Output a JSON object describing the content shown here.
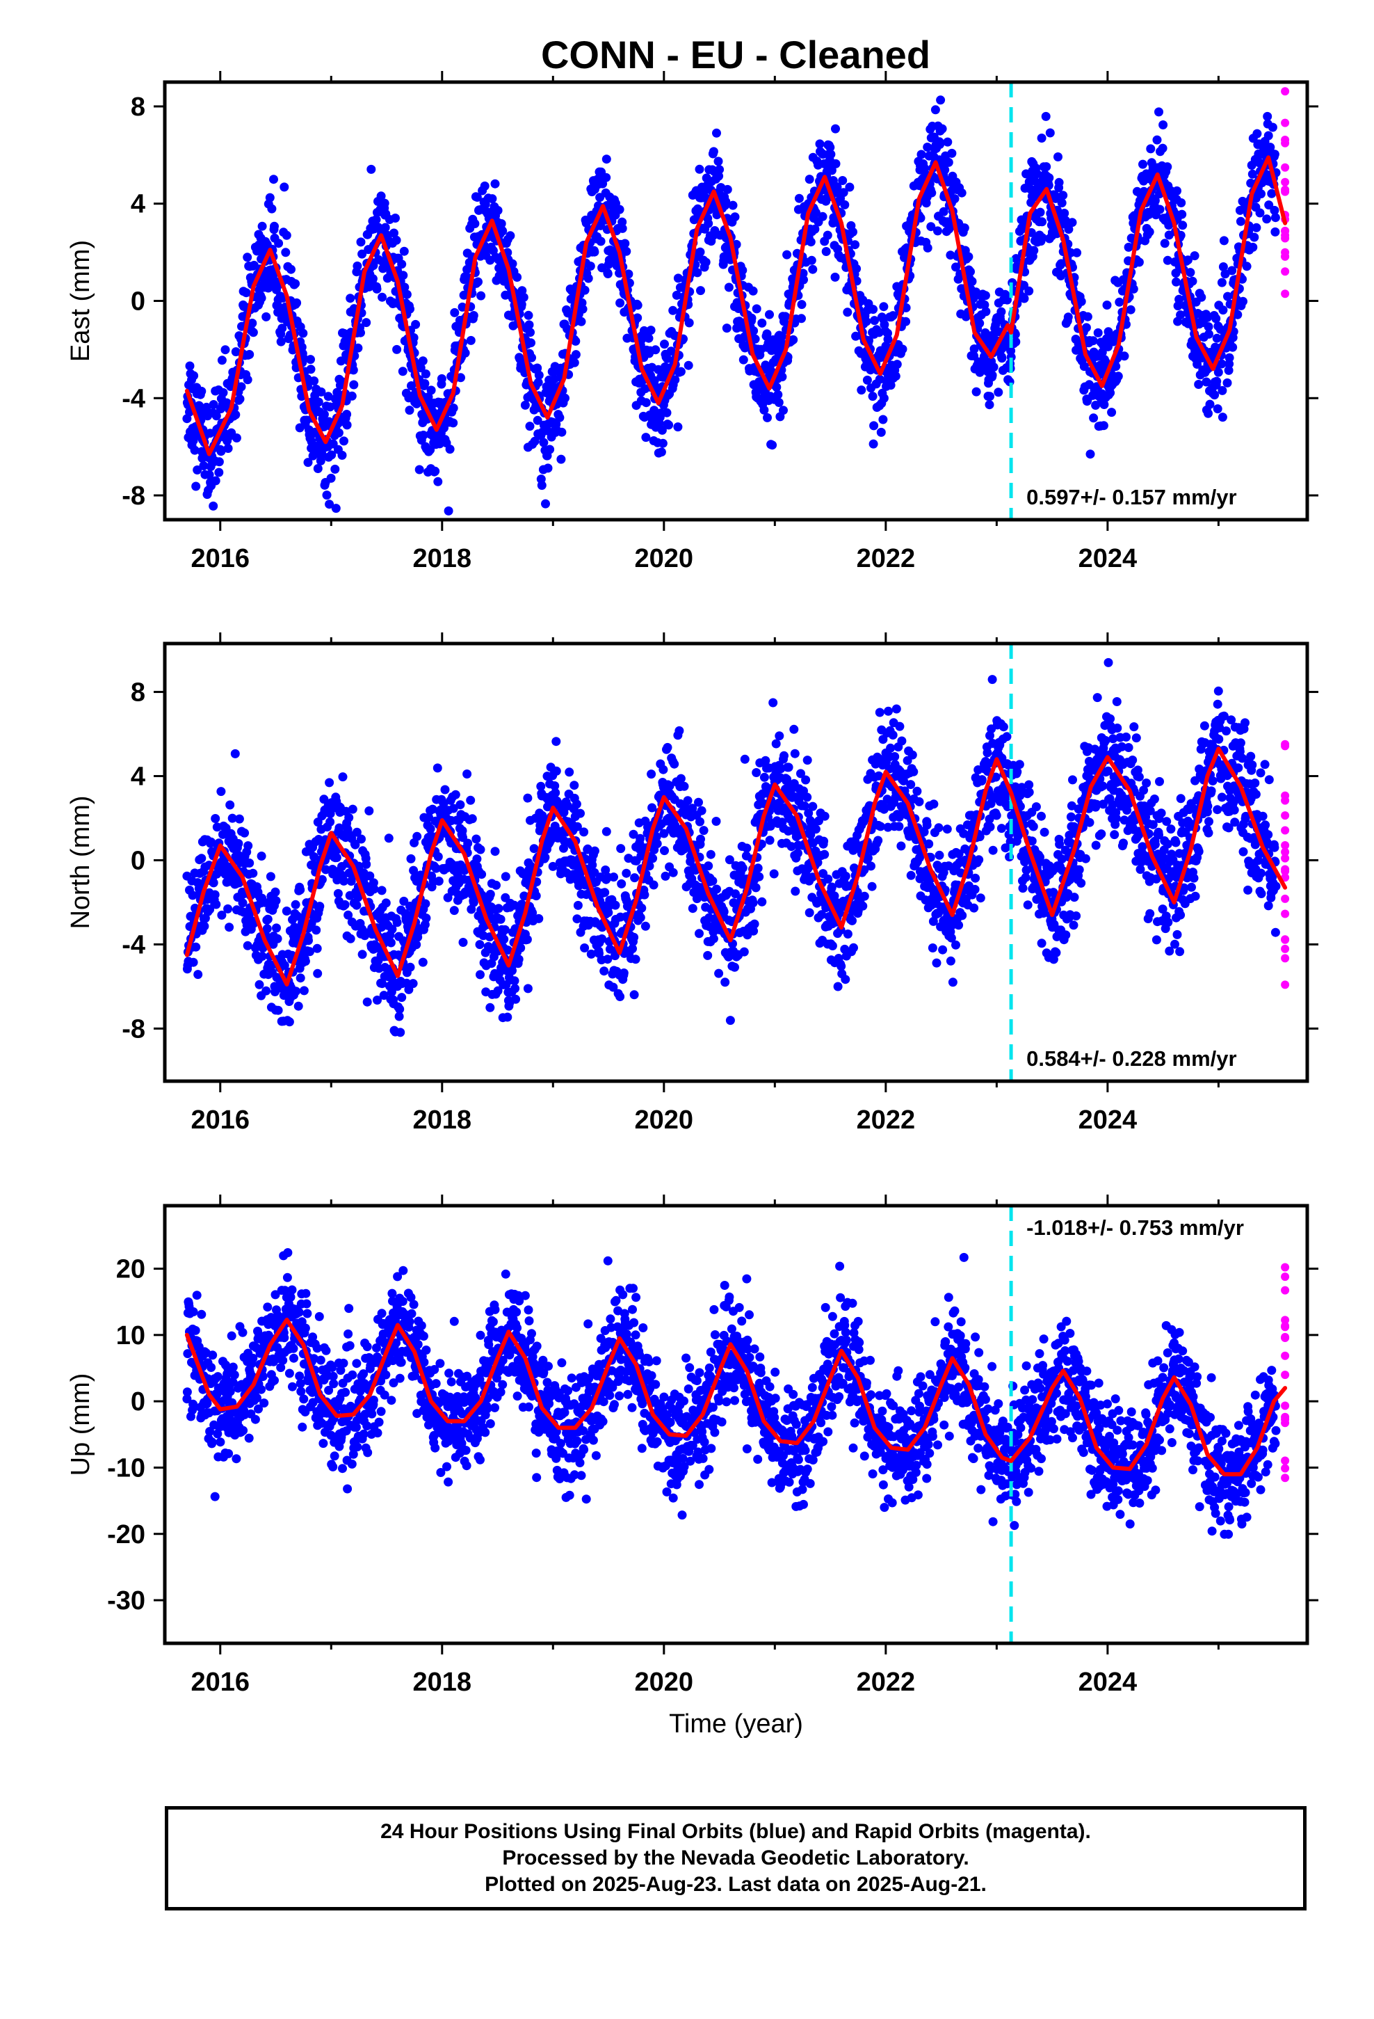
{
  "title": "CONN  - EU - Cleaned",
  "colors": {
    "final_orbits": "#0000ff",
    "rapid_orbits": "#ff00ff",
    "model_fit": "#ff0000",
    "offset_line": "#00e5ee",
    "frame": "#000000"
  },
  "footer": {
    "line1": "24 Hour Positions Using Final Orbits (blue) and Rapid Orbits (magenta).",
    "line2": "Processed by the Nevada Geodetic Laboratory.",
    "line3": "Plotted on 2025-Aug-23. Last data on 2025-Aug-21."
  },
  "chart_data": [
    {
      "type": "scatter",
      "panel": "east",
      "ylabel": "East (mm)",
      "xlabel": "",
      "xlim": [
        2015.5,
        2025.8
      ],
      "ylim": [
        -9,
        9
      ],
      "xticks": [
        2016,
        2018,
        2020,
        2022,
        2024
      ],
      "yticks": [
        -8,
        -4,
        0,
        4,
        8
      ],
      "rate_label": "0.597+/- 0.157 mm/yr",
      "rate_position": "bottom-right",
      "offset_epoch": 2023.13,
      "fit_curve": {
        "x": [
          2015.7,
          2015.9,
          2016.1,
          2016.3,
          2016.45,
          2016.6,
          2016.8,
          2016.95,
          2017.1,
          2017.3,
          2017.45,
          2017.6,
          2017.8,
          2017.95,
          2018.1,
          2018.3,
          2018.45,
          2018.6,
          2018.8,
          2018.95,
          2019.1,
          2019.3,
          2019.45,
          2019.6,
          2019.8,
          2019.95,
          2020.1,
          2020.3,
          2020.45,
          2020.6,
          2020.8,
          2020.95,
          2021.1,
          2021.3,
          2021.45,
          2021.6,
          2021.8,
          2021.95,
          2022.1,
          2022.3,
          2022.45,
          2022.6,
          2022.8,
          2022.95,
          2023.1,
          2023.13,
          2023.3,
          2023.45,
          2023.6,
          2023.8,
          2023.95,
          2024.1,
          2024.3,
          2024.45,
          2024.6,
          2024.8,
          2024.95,
          2025.1,
          2025.3,
          2025.45,
          2025.6
        ],
        "y": [
          -3.7,
          -6.3,
          -4.4,
          0.6,
          2.1,
          0.2,
          -4.5,
          -5.8,
          -4.3,
          1.2,
          2.7,
          0.8,
          -3.9,
          -5.3,
          -3.8,
          1.8,
          3.3,
          1.3,
          -3.4,
          -4.8,
          -3.2,
          2.4,
          3.9,
          2.0,
          -2.8,
          -4.2,
          -2.6,
          3.0,
          4.5,
          2.6,
          -2.2,
          -3.6,
          -2.0,
          3.6,
          5.1,
          3.2,
          -1.6,
          -3.0,
          -1.4,
          4.2,
          5.7,
          3.7,
          -1.3,
          -2.3,
          -1.0,
          -1.3,
          3.6,
          4.6,
          2.5,
          -2.2,
          -3.5,
          -1.8,
          3.7,
          5.2,
          3.2,
          -1.5,
          -2.8,
          -1.2,
          4.4,
          5.9,
          3.2
        ]
      }
    },
    {
      "type": "scatter",
      "panel": "north",
      "ylabel": "North (mm)",
      "xlabel": "",
      "xlim": [
        2015.5,
        2025.8
      ],
      "ylim": [
        -10.5,
        10.3
      ],
      "xticks": [
        2016,
        2018,
        2020,
        2022,
        2024
      ],
      "yticks": [
        -8,
        -4,
        0,
        4,
        8
      ],
      "rate_label": "0.584+/- 0.228 mm/yr",
      "rate_position": "bottom-right",
      "offset_epoch": 2023.13,
      "fit_curve": {
        "x": [
          2015.7,
          2015.85,
          2016.0,
          2016.2,
          2016.4,
          2016.6,
          2016.75,
          2016.9,
          2017.0,
          2017.2,
          2017.4,
          2017.6,
          2017.75,
          2017.9,
          2018.0,
          2018.2,
          2018.4,
          2018.6,
          2018.75,
          2018.9,
          2019.0,
          2019.2,
          2019.4,
          2019.6,
          2019.75,
          2019.9,
          2020.0,
          2020.2,
          2020.4,
          2020.6,
          2020.75,
          2020.9,
          2021.0,
          2021.2,
          2021.4,
          2021.6,
          2021.75,
          2021.9,
          2022.0,
          2022.2,
          2022.4,
          2022.6,
          2022.75,
          2022.9,
          2023.0,
          2023.13,
          2023.3,
          2023.5,
          2023.7,
          2023.85,
          2024.0,
          2024.2,
          2024.4,
          2024.6,
          2024.75,
          2024.9,
          2025.0,
          2025.2,
          2025.4,
          2025.6
        ],
        "y": [
          -4.5,
          -1.5,
          0.7,
          -0.8,
          -3.8,
          -5.9,
          -3.5,
          -0.3,
          1.3,
          -0.3,
          -3.3,
          -5.5,
          -3.0,
          0.3,
          1.9,
          0.3,
          -2.8,
          -5.0,
          -2.5,
          0.9,
          2.5,
          0.9,
          -2.2,
          -4.4,
          -1.9,
          1.5,
          3.0,
          1.5,
          -1.6,
          -3.8,
          -1.3,
          2.1,
          3.6,
          2.1,
          -1.0,
          -3.2,
          -0.7,
          2.7,
          4.2,
          2.7,
          -0.4,
          -2.6,
          -0.1,
          3.3,
          4.8,
          3.2,
          0.4,
          -2.6,
          0.5,
          3.5,
          4.9,
          3.3,
          0.2,
          -2.0,
          0.5,
          4.0,
          5.3,
          3.5,
          0.6,
          -1.3
        ]
      }
    },
    {
      "type": "scatter",
      "panel": "up",
      "ylabel": "Up (mm)",
      "xlabel": "Time (year)",
      "xlim": [
        2015.5,
        2025.8
      ],
      "ylim": [
        -36.5,
        29.5
      ],
      "xticks": [
        2016,
        2018,
        2020,
        2022,
        2024
      ],
      "yticks": [
        -30,
        -20,
        -10,
        0,
        10,
        20
      ],
      "rate_label": "-1.018+/- 0.753 mm/yr",
      "rate_position": "top-right",
      "offset_epoch": 2023.13,
      "fit_curve": {
        "x": [
          2015.7,
          2015.9,
          2016.0,
          2016.15,
          2016.3,
          2016.45,
          2016.6,
          2016.75,
          2016.9,
          2017.05,
          2017.2,
          2017.35,
          2017.5,
          2017.6,
          2017.75,
          2017.9,
          2018.05,
          2018.2,
          2018.35,
          2018.5,
          2018.6,
          2018.75,
          2018.9,
          2019.05,
          2019.2,
          2019.35,
          2019.5,
          2019.6,
          2019.75,
          2019.9,
          2020.05,
          2020.2,
          2020.35,
          2020.5,
          2020.6,
          2020.75,
          2020.9,
          2021.05,
          2021.2,
          2021.35,
          2021.5,
          2021.6,
          2021.75,
          2021.9,
          2022.05,
          2022.2,
          2022.35,
          2022.5,
          2022.6,
          2022.75,
          2022.9,
          2023.05,
          2023.13,
          2023.3,
          2023.5,
          2023.6,
          2023.75,
          2023.9,
          2024.05,
          2024.2,
          2024.35,
          2024.5,
          2024.6,
          2024.75,
          2024.9,
          2025.05,
          2025.2,
          2025.35,
          2025.5,
          2025.6
        ],
        "y": [
          10.0,
          1.0,
          -1.2,
          -0.8,
          2.5,
          8.5,
          12.3,
          8.5,
          1.0,
          -2.2,
          -2.0,
          1.0,
          7.5,
          11.5,
          7.5,
          0.0,
          -3.0,
          -3.0,
          0.0,
          6.5,
          10.5,
          6.5,
          -1.0,
          -4.0,
          -4.0,
          -1.0,
          5.5,
          9.5,
          5.5,
          -2.0,
          -5.0,
          -5.2,
          -2.0,
          4.5,
          8.6,
          4.5,
          -3.0,
          -6.0,
          -6.3,
          -3.0,
          3.5,
          7.6,
          3.5,
          -4.0,
          -7.0,
          -7.3,
          -4.0,
          2.5,
          6.5,
          2.5,
          -5.0,
          -8.5,
          -9.0,
          -5.5,
          2.0,
          4.6,
          0.5,
          -7.0,
          -10.0,
          -10.2,
          -6.5,
          0.5,
          3.6,
          -0.5,
          -8.0,
          -11.0,
          -11.0,
          -7.0,
          0.0,
          2.0
        ]
      }
    }
  ]
}
